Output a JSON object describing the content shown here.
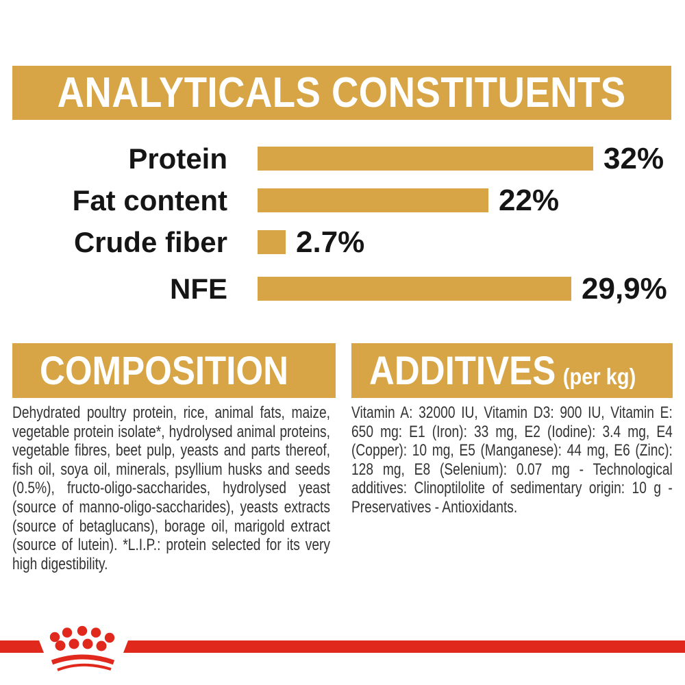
{
  "colors": {
    "gold": "#D7A545",
    "red": "#E0291C",
    "chart_text": "#151515",
    "body_text": "#333333",
    "header_text": "#FFFFFF"
  },
  "header": {
    "title": "ANALYTICALS CONSTITUENTS"
  },
  "chart_data": {
    "type": "bar",
    "orientation": "horizontal",
    "title": "ANALYTICALS CONSTITUENTS",
    "categories": [
      "Protein",
      "Fat content",
      "Crude fiber",
      "NFE"
    ],
    "values": [
      32,
      22,
      2.7,
      29.9
    ],
    "value_labels": [
      "32%",
      "22%",
      "2.7%",
      "29,9%"
    ],
    "xlim": [
      0,
      32
    ],
    "bar_color": "#D7A545",
    "grid": "off",
    "legend": "none"
  },
  "composition": {
    "title": "COMPOSITION",
    "body": "Dehydrated poultry protein, rice, animal fats, maize, vegetable protein isolate*, hydrolysed animal proteins, vegetable fibres, beet pulp, yeasts and parts thereof, fish oil, soya oil, minerals, psyllium husks and seeds (0.5%), fructo-oligo-saccharides, hydrolysed yeast (source of manno-oligo-saccharides), yeasts extracts (source of betaglucans), borage oil, marigold extract (source of lutein). *L.I.P.: protein selected for its very high digestibility."
  },
  "additives": {
    "title": "ADDITIVES",
    "unit_note": "(per kg)",
    "body": "Vitamin A: 32000 IU, Vitamin D3: 900 IU, Vitamin E: 650 mg: E1 (Iron): 33 mg, E2 (Iodine): 3.4 mg, E4 (Copper): 10 mg, E5 (Manganese): 44 mg, E6 (Zinc): 128 mg, E8 (Selenium): 0.07 mg - Technological additives: Clinoptilolite of sedimentary origin: 10 g - Preservatives - Antioxidants."
  },
  "footer": {
    "brand_icon": "royal-canin-crown-icon"
  }
}
